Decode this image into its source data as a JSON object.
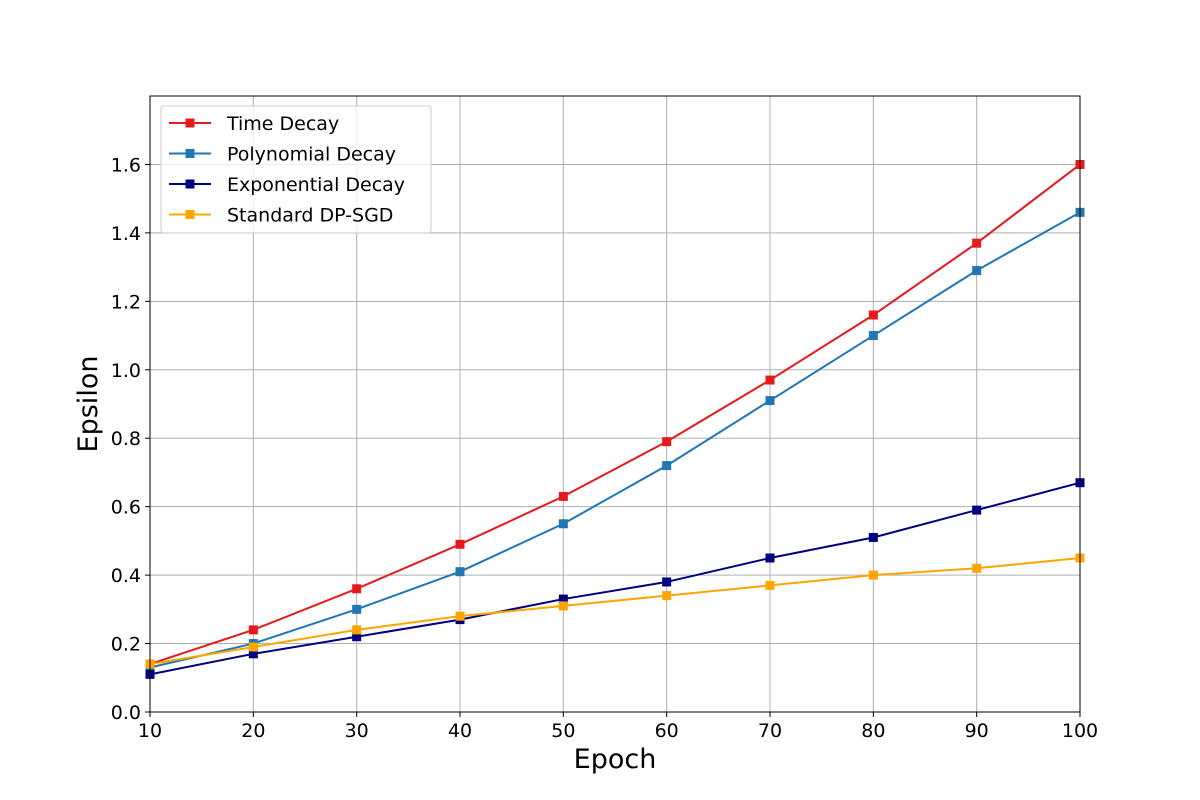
{
  "chart_data": {
    "type": "line",
    "title": "",
    "xlabel": "Epoch",
    "ylabel": "Epsilon",
    "xlim": [
      10,
      100
    ],
    "ylim": [
      0,
      1.8
    ],
    "x_ticks": [
      "10",
      "20",
      "30",
      "40",
      "50",
      "60",
      "70",
      "80",
      "90",
      "100"
    ],
    "y_ticks": [
      "0.0",
      "0.2",
      "0.4",
      "0.6",
      "0.8",
      "1.0",
      "1.2",
      "1.4",
      "1.6"
    ],
    "grid": true,
    "legend_position": "top-left",
    "marker": "square",
    "x": [
      10,
      20,
      30,
      40,
      50,
      60,
      70,
      80,
      90,
      100
    ],
    "series": [
      {
        "name": "Time Decay",
        "color": "#e41a1c",
        "values": [
          0.14,
          0.24,
          0.36,
          0.49,
          0.63,
          0.79,
          0.97,
          1.16,
          1.37,
          1.6
        ]
      },
      {
        "name": "Polynomial Decay",
        "color": "#1f77b4",
        "values": [
          0.13,
          0.2,
          0.3,
          0.41,
          0.55,
          0.72,
          0.91,
          1.1,
          1.29,
          1.46
        ]
      },
      {
        "name": "Exponential Decay",
        "color": "#000080",
        "values": [
          0.11,
          0.17,
          0.22,
          0.27,
          0.33,
          0.38,
          0.45,
          0.51,
          0.59,
          0.67
        ]
      },
      {
        "name": "Standard DP-SGD",
        "color": "#ffa500",
        "values": [
          0.14,
          0.19,
          0.24,
          0.28,
          0.31,
          0.34,
          0.37,
          0.4,
          0.42,
          0.45
        ]
      }
    ]
  }
}
